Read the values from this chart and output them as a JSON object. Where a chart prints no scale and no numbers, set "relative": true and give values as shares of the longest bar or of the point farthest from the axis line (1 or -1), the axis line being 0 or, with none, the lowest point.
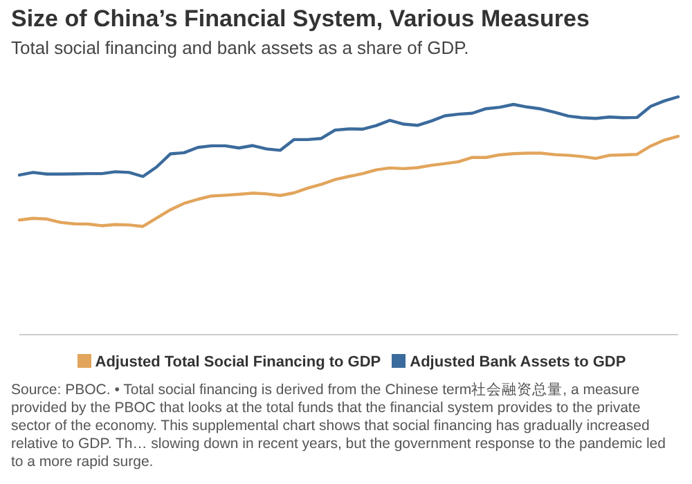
{
  "chart_data": {
    "type": "line",
    "title": "Size of China’s Financial System, Various Measures",
    "subtitle": "Total social financing and bank assets as a share of GDP.",
    "annotations": [
      "Source: PBOC. • Total social financing is derived from the Chinese term社会融资总量, a measure provided by the PBOC that looks at the total funds that the financial system provides to the private sector of the economy. This supplemental chart shows that social financing has gradually increased relative to GDP. Th… slowing down in recent years, but the government response to the pandemic led to a more rapid surge."
    ],
    "relative": true,
    "legend": "bottom",
    "categories": [
      null,
      null,
      null,
      null,
      null,
      null,
      null,
      null,
      null,
      null,
      null,
      null,
      null,
      null,
      null,
      null,
      null,
      null,
      null,
      null,
      null,
      null,
      null,
      null,
      null,
      null,
      null,
      null,
      null,
      null,
      null,
      null,
      null,
      null,
      null,
      null,
      null,
      null,
      null,
      null,
      null,
      null,
      null,
      null,
      null,
      null,
      null,
      null,
      null
    ],
    "series": [
      {
        "name": "Adjusted Total Social Financing to GDP",
        "color": "#e2a55c",
        "values": [
          0.482,
          0.489,
          0.486,
          0.472,
          0.466,
          0.465,
          0.458,
          0.463,
          0.461,
          0.455,
          0.49,
          0.525,
          0.552,
          0.569,
          0.583,
          0.586,
          0.59,
          0.595,
          0.592,
          0.585,
          0.596,
          0.616,
          0.632,
          0.652,
          0.665,
          0.677,
          0.693,
          0.701,
          0.698,
          0.702,
          0.712,
          0.719,
          0.727,
          0.745,
          0.745,
          0.756,
          0.761,
          0.763,
          0.763,
          0.757,
          0.754,
          0.749,
          0.741,
          0.754,
          0.756,
          0.758,
          0.793,
          0.818,
          0.834
        ]
      },
      {
        "name": "Adjusted Bank Assets to GDP",
        "color": "#3b6b9c",
        "values": [
          0.671,
          0.682,
          0.675,
          0.675,
          0.676,
          0.677,
          0.677,
          0.685,
          0.682,
          0.665,
          0.705,
          0.76,
          0.765,
          0.787,
          0.794,
          0.794,
          0.785,
          0.795,
          0.781,
          0.775,
          0.82,
          0.82,
          0.825,
          0.86,
          0.865,
          0.864,
          0.879,
          0.901,
          0.885,
          0.88,
          0.898,
          0.92,
          0.927,
          0.931,
          0.95,
          0.956,
          0.968,
          0.957,
          0.949,
          0.935,
          0.919,
          0.912,
          0.909,
          0.915,
          0.912,
          0.913,
          0.96,
          0.983,
          1.0
        ]
      }
    ]
  }
}
